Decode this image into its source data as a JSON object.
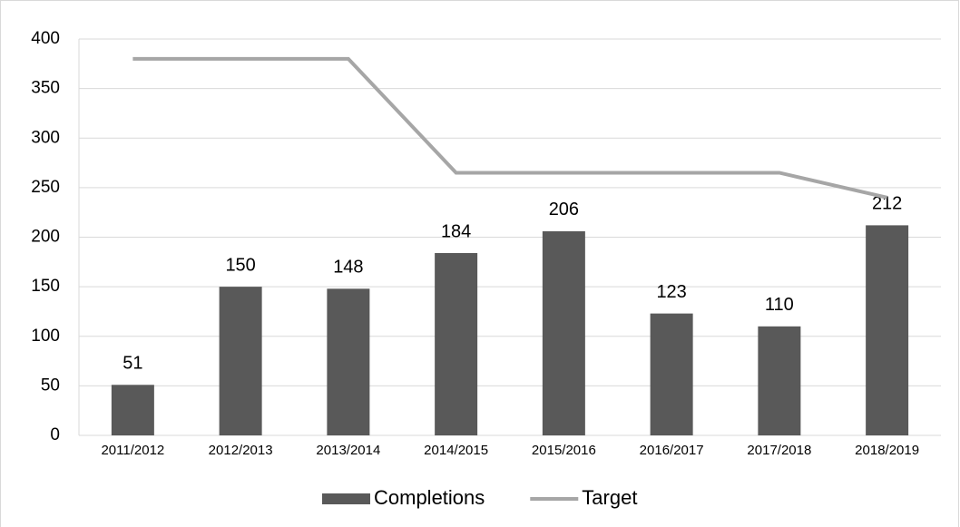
{
  "chart_data": {
    "type": "bar",
    "categories": [
      "2011/2012",
      "2012/2013",
      "2013/2014",
      "2014/2015",
      "2015/2016",
      "2016/2017",
      "2017/2018",
      "2018/2019"
    ],
    "series": [
      {
        "name": "Completions",
        "color": "#595959",
        "type": "bar",
        "values": [
          51,
          150,
          148,
          184,
          206,
          123,
          110,
          212
        ]
      },
      {
        "name": "Target",
        "color": "#a6a6a6",
        "type": "line",
        "values": [
          380,
          380,
          380,
          265,
          265,
          265,
          265,
          240
        ]
      }
    ],
    "ylim": [
      0,
      400
    ],
    "yticks": [
      0,
      50,
      100,
      150,
      200,
      250,
      300,
      350,
      400
    ],
    "grid": true,
    "legend": "bottom"
  }
}
